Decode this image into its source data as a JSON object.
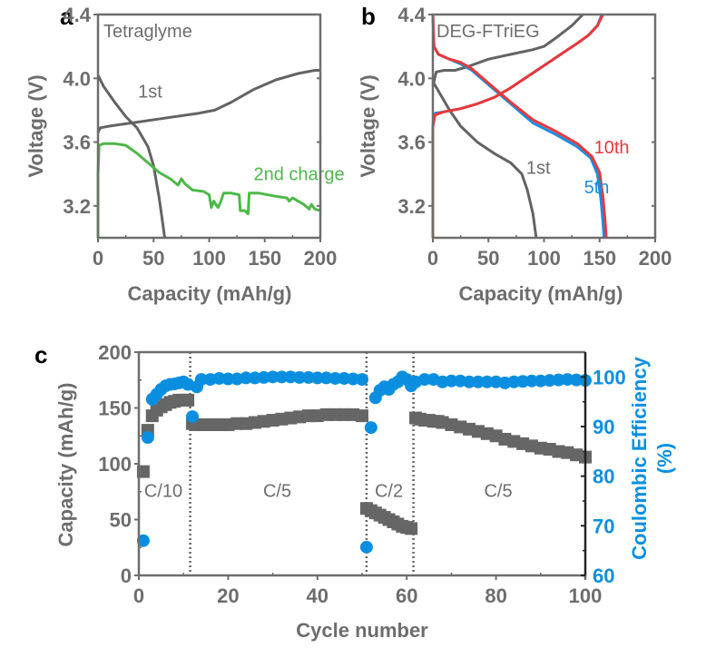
{
  "colors": {
    "axis": "#6d6d6d",
    "gray_curve": "#636363",
    "green": "#4db848",
    "red": "#e8383a",
    "blue": "#1a8ee0",
    "ce_blue": "#0a8fe0",
    "capacity_square": "#666666"
  },
  "chart_data": [
    {
      "panel": "a",
      "type": "line",
      "title": "Tetraglyme",
      "xlabel": "Capacity (mAh/g)",
      "ylabel": "Voltage (V)",
      "xlim": [
        0,
        200
      ],
      "ylim": [
        3.0,
        4.4
      ],
      "xticks": [
        0,
        50,
        100,
        150,
        200
      ],
      "yticks": [
        3.2,
        3.6,
        4.0,
        4.4
      ],
      "ytick_labels": [
        "3.2",
        "3.6",
        "4.0",
        "4.4"
      ],
      "annotations": [
        {
          "text": "1st",
          "color": "gray",
          "x": 36,
          "y": 3.88
        },
        {
          "text": "2nd charge",
          "color": "green",
          "x": 140,
          "y": 3.36
        }
      ],
      "series": [
        {
          "name": "1st charge",
          "color": "gray",
          "x": [
            0,
            2,
            10,
            30,
            60,
            90,
            105,
            120,
            140,
            160,
            180,
            195,
            200
          ],
          "y": [
            3.66,
            3.69,
            3.7,
            3.72,
            3.75,
            3.78,
            3.8,
            3.85,
            3.93,
            3.99,
            4.03,
            4.05,
            4.05
          ]
        },
        {
          "name": "1st discharge",
          "color": "gray",
          "x": [
            0,
            5,
            15,
            25,
            35,
            45,
            50,
            55,
            58,
            60
          ],
          "y": [
            4.02,
            3.95,
            3.85,
            3.76,
            3.69,
            3.57,
            3.45,
            3.25,
            3.1,
            3.0
          ]
        },
        {
          "name": "2nd charge",
          "color": "green",
          "x": [
            0,
            0,
            1,
            5,
            15,
            25,
            35,
            45,
            55,
            65,
            72,
            75,
            78,
            85,
            95,
            100,
            102,
            104,
            108,
            110,
            113,
            120,
            127,
            128,
            132,
            135,
            136,
            138,
            145,
            160,
            170,
            172,
            175,
            185,
            190,
            192,
            195,
            200
          ],
          "y": [
            3.0,
            3.4,
            3.58,
            3.59,
            3.59,
            3.58,
            3.53,
            3.47,
            3.41,
            3.37,
            3.33,
            3.37,
            3.34,
            3.3,
            3.29,
            3.27,
            3.19,
            3.23,
            3.19,
            3.22,
            3.28,
            3.28,
            3.27,
            3.17,
            3.17,
            3.15,
            3.28,
            3.28,
            3.28,
            3.26,
            3.25,
            3.23,
            3.25,
            3.21,
            3.18,
            3.21,
            3.18,
            3.17
          ]
        }
      ]
    },
    {
      "panel": "b",
      "type": "line",
      "title": "DEG-FTriEG",
      "xlabel": "Capacity (mAh/g)",
      "ylabel": "Voltage (V)",
      "xlim": [
        0,
        200
      ],
      "ylim": [
        3.0,
        4.4
      ],
      "xticks": [
        0,
        50,
        100,
        150,
        200
      ],
      "yticks": [
        3.2,
        3.6,
        4.0,
        4.4
      ],
      "ytick_labels": [
        "3.2",
        "3.6",
        "4.0",
        "4.4"
      ],
      "annotations": [
        {
          "text": "1st",
          "color": "gray",
          "x": 84,
          "y": 3.4
        },
        {
          "text": "5th",
          "color": "blue",
          "x": 136,
          "y": 3.28
        },
        {
          "text": "10th",
          "color": "red",
          "x": 145,
          "y": 3.53
        }
      ],
      "series": [
        {
          "name": "1st charge",
          "color": "gray",
          "x": [
            0,
            3,
            10,
            20,
            30,
            50,
            70,
            90,
            100,
            110,
            125,
            135
          ],
          "y": [
            3.95,
            4.04,
            4.05,
            4.05,
            4.07,
            4.12,
            4.15,
            4.18,
            4.2,
            4.25,
            4.33,
            4.4
          ]
        },
        {
          "name": "1st discharge",
          "color": "gray",
          "x": [
            0,
            5,
            15,
            25,
            40,
            55,
            70,
            80,
            85,
            90,
            92,
            93
          ],
          "y": [
            3.98,
            3.92,
            3.8,
            3.7,
            3.6,
            3.53,
            3.47,
            3.4,
            3.3,
            3.15,
            3.05,
            3.0
          ]
        },
        {
          "name": "5th charge",
          "color": "blue",
          "x": [
            0,
            0,
            2,
            10,
            25,
            40,
            55,
            70,
            85,
            100,
            115,
            130,
            140,
            148,
            152
          ],
          "y": [
            3.0,
            3.7,
            3.78,
            3.79,
            3.81,
            3.84,
            3.88,
            3.94,
            4.01,
            4.08,
            4.15,
            4.22,
            4.27,
            4.33,
            4.4
          ]
        },
        {
          "name": "5th discharge",
          "color": "blue",
          "x": [
            0,
            1,
            5,
            15,
            25,
            35,
            50,
            70,
            90,
            110,
            130,
            142,
            148,
            151,
            153,
            154
          ],
          "y": [
            4.4,
            4.2,
            4.15,
            4.12,
            4.09,
            4.05,
            3.96,
            3.84,
            3.72,
            3.65,
            3.57,
            3.5,
            3.4,
            3.25,
            3.1,
            3.0
          ]
        },
        {
          "name": "10th charge",
          "color": "red",
          "x": [
            0,
            0,
            2,
            10,
            25,
            40,
            55,
            70,
            85,
            100,
            115,
            130,
            140,
            148,
            153
          ],
          "y": [
            3.0,
            3.7,
            3.77,
            3.79,
            3.81,
            3.84,
            3.88,
            3.94,
            4.01,
            4.08,
            4.15,
            4.22,
            4.27,
            4.33,
            4.4
          ]
        },
        {
          "name": "10th discharge",
          "color": "red",
          "x": [
            0,
            1,
            5,
            15,
            25,
            35,
            50,
            70,
            90,
            110,
            130,
            143,
            150,
            153,
            155,
            156
          ],
          "y": [
            4.4,
            4.2,
            4.15,
            4.12,
            4.1,
            4.06,
            3.97,
            3.85,
            3.74,
            3.67,
            3.59,
            3.51,
            3.41,
            3.26,
            3.1,
            3.0
          ]
        }
      ]
    },
    {
      "panel": "c",
      "type": "scatter",
      "xlabel": "Cycle number",
      "ylabel": "Capacity (mAh/g)",
      "y2label": "Coulombic Efficiency (%)",
      "y2label_lines": [
        "Coulombic Efficiency",
        "(%)"
      ],
      "xlim": [
        0,
        100
      ],
      "ylim": [
        0,
        200
      ],
      "y2lim": [
        60,
        105
      ],
      "xticks": [
        0,
        20,
        40,
        60,
        80,
        100
      ],
      "yticks": [
        0,
        50,
        100,
        150,
        200
      ],
      "y2ticks": [
        60,
        70,
        80,
        90,
        100
      ],
      "rate_dividers": [
        11.5,
        51,
        61.5
      ],
      "rate_labels": [
        {
          "text": "C/10",
          "x": 5.5
        },
        {
          "text": "C/5",
          "x": 31
        },
        {
          "text": "C/2",
          "x": 56
        },
        {
          "text": "C/5",
          "x": 80.5
        }
      ],
      "rate_label_y": 76,
      "series": [
        {
          "name": "Capacity",
          "axis": "left",
          "marker": "square",
          "points": [
            [
              1,
              93
            ],
            [
              2,
              130
            ],
            [
              3,
              143
            ],
            [
              4,
              148
            ],
            [
              5,
              151
            ],
            [
              6,
              153
            ],
            [
              7,
              155
            ],
            [
              8,
              156
            ],
            [
              9,
              157
            ],
            [
              10,
              157
            ],
            [
              11,
              157
            ],
            [
              12,
              136
            ],
            [
              13,
              135
            ],
            [
              14,
              135
            ],
            [
              15,
              135
            ],
            [
              16,
              135
            ],
            [
              17,
              135
            ],
            [
              18,
              135
            ],
            [
              19,
              135
            ],
            [
              20,
              135
            ],
            [
              22,
              136
            ],
            [
              24,
              136
            ],
            [
              26,
              137
            ],
            [
              28,
              138
            ],
            [
              30,
              139
            ],
            [
              32,
              140
            ],
            [
              34,
              141
            ],
            [
              36,
              142
            ],
            [
              38,
              143
            ],
            [
              40,
              143
            ],
            [
              42,
              144
            ],
            [
              44,
              144
            ],
            [
              46,
              144
            ],
            [
              48,
              144
            ],
            [
              50,
              143
            ],
            [
              51,
              60
            ],
            [
              52,
              58
            ],
            [
              53,
              56
            ],
            [
              54,
              54
            ],
            [
              55,
              52
            ],
            [
              56,
              50
            ],
            [
              57,
              48
            ],
            [
              58,
              46
            ],
            [
              59,
              44
            ],
            [
              60,
              43
            ],
            [
              61,
              42
            ],
            [
              62,
              141
            ],
            [
              63,
              140
            ],
            [
              64,
              139
            ],
            [
              65,
              139
            ],
            [
              66,
              138
            ],
            [
              67,
              138
            ],
            [
              68,
              137
            ],
            [
              70,
              135
            ],
            [
              72,
              133
            ],
            [
              74,
              131
            ],
            [
              76,
              129
            ],
            [
              78,
              127
            ],
            [
              80,
              125
            ],
            [
              82,
              122
            ],
            [
              84,
              120
            ],
            [
              86,
              118
            ],
            [
              88,
              116
            ],
            [
              90,
              114
            ],
            [
              92,
              113
            ],
            [
              94,
              111
            ],
            [
              96,
              110
            ],
            [
              98,
              108
            ],
            [
              100,
              106
            ]
          ]
        },
        {
          "name": "Coulombic Efficiency",
          "axis": "right",
          "marker": "circle",
          "points": [
            [
              1,
              67
            ],
            [
              2,
              87.8
            ],
            [
              3,
              95.5
            ],
            [
              4,
              96.5
            ],
            [
              5,
              97.5
            ],
            [
              6,
              98.2
            ],
            [
              7,
              98.5
            ],
            [
              8,
              98.6
            ],
            [
              9,
              98.8
            ],
            [
              10,
              99
            ],
            [
              11,
              98.5
            ],
            [
              12,
              92
            ],
            [
              13,
              98
            ],
            [
              14,
              99.5
            ],
            [
              16,
              99.5
            ],
            [
              18,
              99.7
            ],
            [
              20,
              99.6
            ],
            [
              22,
              99.6
            ],
            [
              24,
              99.8
            ],
            [
              26,
              99.8
            ],
            [
              28,
              99.9
            ],
            [
              30,
              100
            ],
            [
              32,
              100
            ],
            [
              34,
              100
            ],
            [
              36,
              99.9
            ],
            [
              38,
              99.9
            ],
            [
              40,
              99.8
            ],
            [
              42,
              99.8
            ],
            [
              44,
              99.7
            ],
            [
              46,
              99.7
            ],
            [
              48,
              99.6
            ],
            [
              50,
              99.5
            ],
            [
              51,
              65.7
            ],
            [
              52,
              89.8
            ],
            [
              53,
              95.8
            ],
            [
              54,
              97.3
            ],
            [
              55,
              98
            ],
            [
              56,
              97.5
            ],
            [
              57,
              98.5
            ],
            [
              58,
              99
            ],
            [
              59,
              100
            ],
            [
              60,
              99.5
            ],
            [
              61,
              98.2
            ],
            [
              62,
              99
            ],
            [
              64,
              99.5
            ],
            [
              66,
              99.5
            ],
            [
              68,
              99
            ],
            [
              70,
              99.2
            ],
            [
              72,
              99.2
            ],
            [
              74,
              99
            ],
            [
              76,
              99
            ],
            [
              78,
              99
            ],
            [
              80,
              99
            ],
            [
              82,
              98.8
            ],
            [
              84,
              99
            ],
            [
              86,
              99.1
            ],
            [
              88,
              99.2
            ],
            [
              90,
              99.2
            ],
            [
              92,
              99.3
            ],
            [
              94,
              99.4
            ],
            [
              96,
              99.5
            ],
            [
              98,
              99.4
            ],
            [
              100,
              99.3
            ]
          ]
        }
      ]
    }
  ]
}
